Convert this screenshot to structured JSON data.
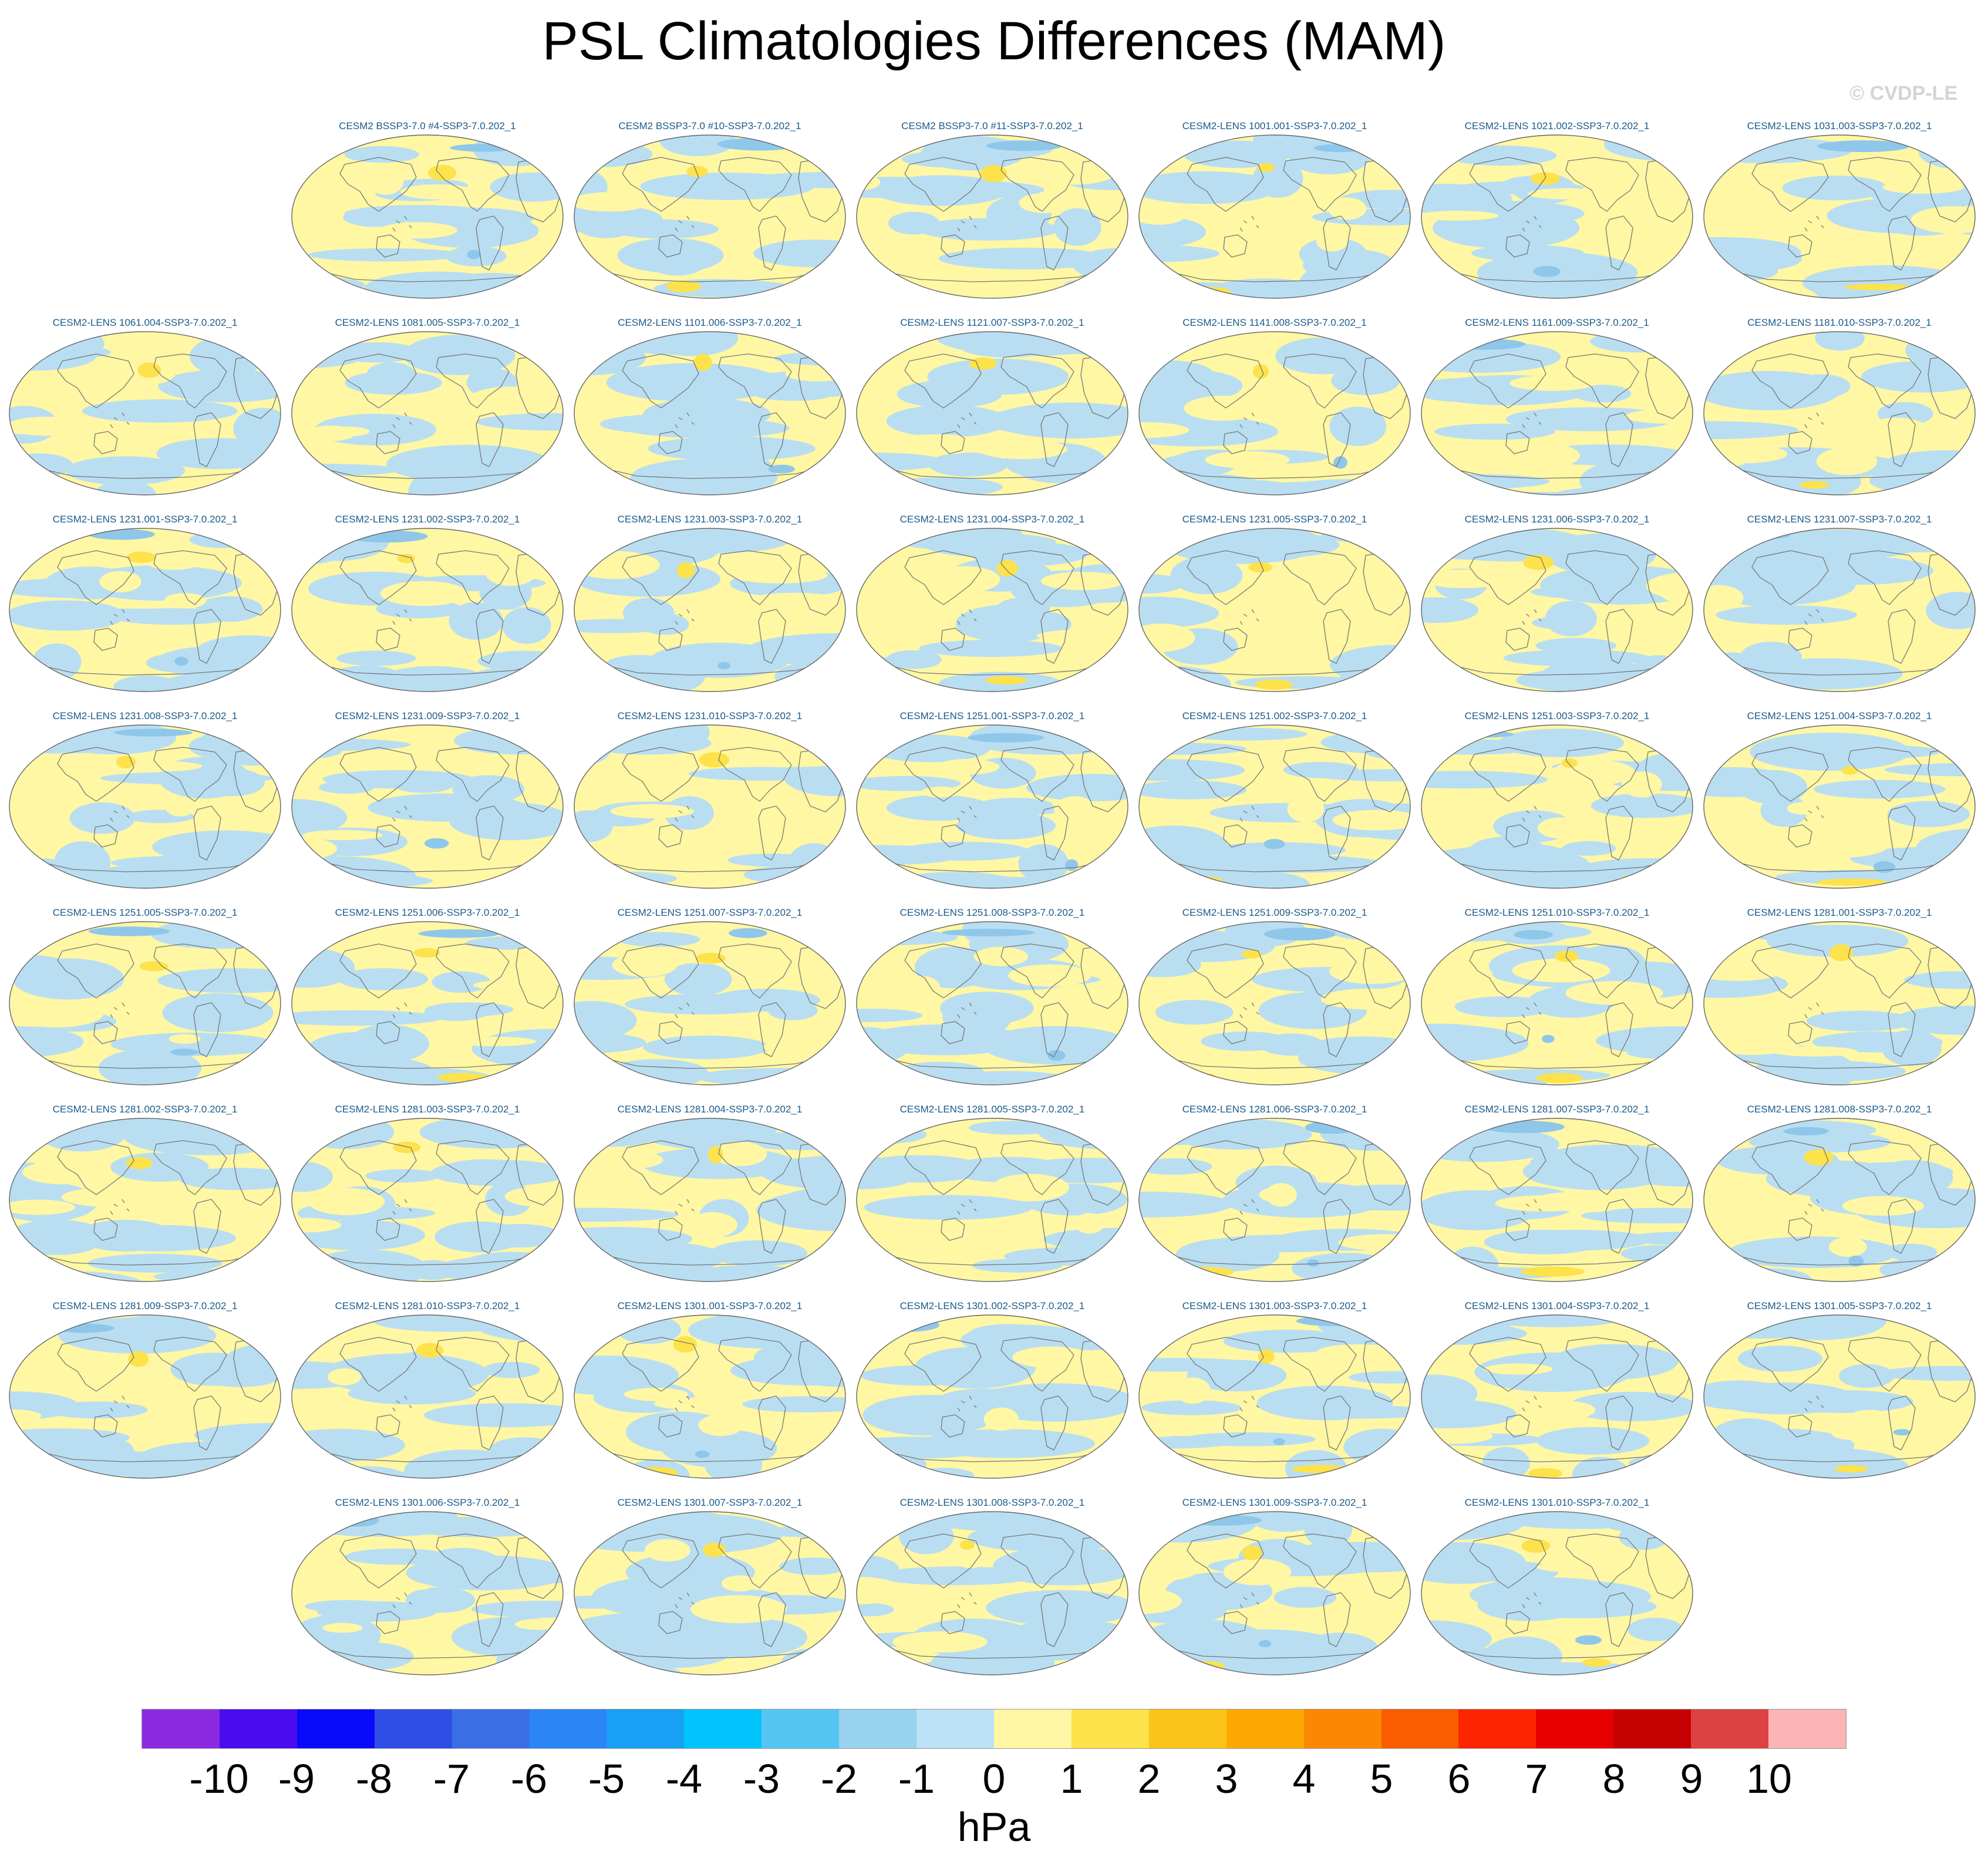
{
  "title": "PSL Climatologies Differences (MAM)",
  "credit": "© CVDP-LE",
  "units": "hPa",
  "colors": {
    "fill_positive": "#fff7a3",
    "fill_negative": "#b9def2",
    "blob_positive": "#fde24c",
    "blob_negative": "#8fc7ea",
    "coast": "#777777",
    "label": "#1a5a8a"
  },
  "panel_rows": [
    {
      "offset": 1,
      "labels": [
        "CESM2 BSSP3-7.0 #4-SSP3-7.0.202_1",
        "CESM2 BSSP3-7.0 #10-SSP3-7.0.202_1",
        "CESM2 BSSP3-7.0 #11-SSP3-7.0.202_1",
        "CESM2-LENS 1001.001-SSP3-7.0.202_1",
        "CESM2-LENS 1021.002-SSP3-7.0.202_1",
        "CESM2-LENS 1031.003-SSP3-7.0.202_1"
      ]
    },
    {
      "offset": 0,
      "labels": [
        "CESM2-LENS 1061.004-SSP3-7.0.202_1",
        "CESM2-LENS 1081.005-SSP3-7.0.202_1",
        "CESM2-LENS 1101.006-SSP3-7.0.202_1",
        "CESM2-LENS 1121.007-SSP3-7.0.202_1",
        "CESM2-LENS 1141.008-SSP3-7.0.202_1",
        "CESM2-LENS 1161.009-SSP3-7.0.202_1",
        "CESM2-LENS 1181.010-SSP3-7.0.202_1"
      ]
    },
    {
      "offset": 0,
      "labels": [
        "CESM2-LENS 1231.001-SSP3-7.0.202_1",
        "CESM2-LENS 1231.002-SSP3-7.0.202_1",
        "CESM2-LENS 1231.003-SSP3-7.0.202_1",
        "CESM2-LENS 1231.004-SSP3-7.0.202_1",
        "CESM2-LENS 1231.005-SSP3-7.0.202_1",
        "CESM2-LENS 1231.006-SSP3-7.0.202_1",
        "CESM2-LENS 1231.007-SSP3-7.0.202_1"
      ]
    },
    {
      "offset": 0,
      "labels": [
        "CESM2-LENS 1231.008-SSP3-7.0.202_1",
        "CESM2-LENS 1231.009-SSP3-7.0.202_1",
        "CESM2-LENS 1231.010-SSP3-7.0.202_1",
        "CESM2-LENS 1251.001-SSP3-7.0.202_1",
        "CESM2-LENS 1251.002-SSP3-7.0.202_1",
        "CESM2-LENS 1251.003-SSP3-7.0.202_1",
        "CESM2-LENS 1251.004-SSP3-7.0.202_1"
      ]
    },
    {
      "offset": 0,
      "labels": [
        "CESM2-LENS 1251.005-SSP3-7.0.202_1",
        "CESM2-LENS 1251.006-SSP3-7.0.202_1",
        "CESM2-LENS 1251.007-SSP3-7.0.202_1",
        "CESM2-LENS 1251.008-SSP3-7.0.202_1",
        "CESM2-LENS 1251.009-SSP3-7.0.202_1",
        "CESM2-LENS 1251.010-SSP3-7.0.202_1",
        "CESM2-LENS 1281.001-SSP3-7.0.202_1"
      ]
    },
    {
      "offset": 0,
      "labels": [
        "CESM2-LENS 1281.002-SSP3-7.0.202_1",
        "CESM2-LENS 1281.003-SSP3-7.0.202_1",
        "CESM2-LENS 1281.004-SSP3-7.0.202_1",
        "CESM2-LENS 1281.005-SSP3-7.0.202_1",
        "CESM2-LENS 1281.006-SSP3-7.0.202_1",
        "CESM2-LENS 1281.007-SSP3-7.0.202_1",
        "CESM2-LENS 1281.008-SSP3-7.0.202_1"
      ]
    },
    {
      "offset": 0,
      "labels": [
        "CESM2-LENS 1281.009-SSP3-7.0.202_1",
        "CESM2-LENS 1281.010-SSP3-7.0.202_1",
        "CESM2-LENS 1301.001-SSP3-7.0.202_1",
        "CESM2-LENS 1301.002-SSP3-7.0.202_1",
        "CESM2-LENS 1301.003-SSP3-7.0.202_1",
        "CESM2-LENS 1301.004-SSP3-7.0.202_1",
        "CESM2-LENS 1301.005-SSP3-7.0.202_1"
      ]
    },
    {
      "offset": 1,
      "labels": [
        "CESM2-LENS 1301.006-SSP3-7.0.202_1",
        "CESM2-LENS 1301.007-SSP3-7.0.202_1",
        "CESM2-LENS 1301.008-SSP3-7.0.202_1",
        "CESM2-LENS 1301.009-SSP3-7.0.202_1",
        "CESM2-LENS 1301.010-SSP3-7.0.202_1"
      ]
    }
  ],
  "colorbar": {
    "colors": [
      "#8a2be2",
      "#4b0bf0",
      "#0a0afa",
      "#2e4fe6",
      "#3a6fe4",
      "#2a86f5",
      "#18a0f5",
      "#00c3fb",
      "#55c6f3",
      "#98d2ee",
      "#bce2f5",
      "#fff7a3",
      "#fde24c",
      "#fcc31a",
      "#fca800",
      "#fb8800",
      "#fb5c00",
      "#fd2400",
      "#e80000",
      "#c40000",
      "#dc4242",
      "#fdb4b4"
    ],
    "ticks": [
      "-10",
      "-9",
      "-8",
      "-7",
      "-6",
      "-5",
      "-4",
      "-3",
      "-2",
      "-1",
      "0",
      "1",
      "2",
      "3",
      "4",
      "5",
      "6",
      "7",
      "8",
      "9",
      "10"
    ]
  }
}
